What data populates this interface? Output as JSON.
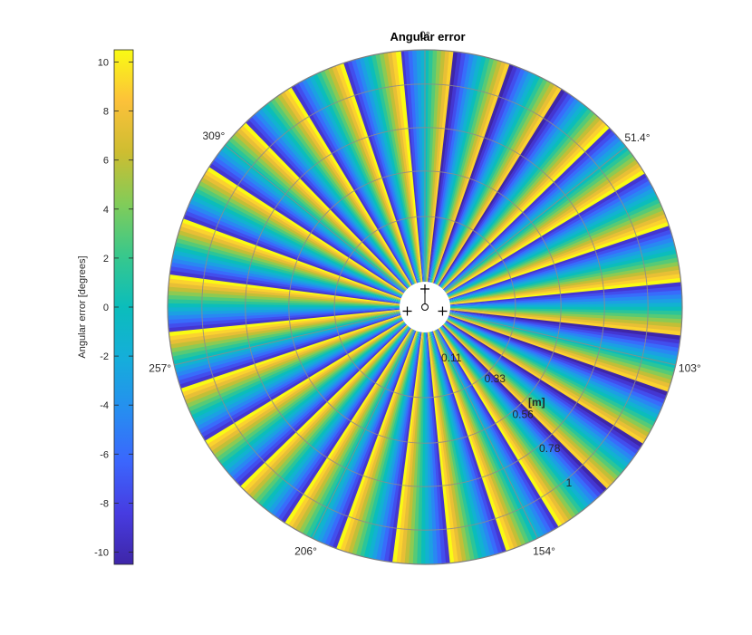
{
  "chart_data": {
    "type": "heatmap",
    "projection": "polar",
    "title": "Angular error",
    "colorbar": {
      "label": "Angular error [degrees]",
      "range": [
        -10.5,
        10.5
      ],
      "ticks": [
        -10,
        -8,
        -6,
        -4,
        -2,
        0,
        2,
        4,
        6,
        8,
        10
      ],
      "colormap": "parula",
      "placement": "left"
    },
    "radial_axis": {
      "unit_label": "[m]",
      "range": [
        0,
        1.22
      ],
      "ticks": [
        0.11,
        0.33,
        0.56,
        0.78,
        1
      ],
      "tick_labels": [
        "0.11",
        "0.33",
        "0.56",
        "0.78",
        "1"
      ]
    },
    "angular_axis": {
      "direction": "clockwise",
      "zero_at": "top",
      "tick_labels": [
        "0°",
        "51.4°",
        "103°",
        "154°",
        "206°",
        "257°",
        "309°"
      ],
      "tick_angles_deg": [
        0,
        51.4,
        103,
        154,
        206,
        257,
        309
      ]
    },
    "pattern": {
      "sectors_per_cycle_deg": 12.857,
      "amplitude_deg": 10.5,
      "description_values": "angular error cycles linearly from -10.5 to +10.5 degrees within each 12.857 degree sector"
    },
    "markers": [
      {
        "symbol": "+",
        "angle_deg": 0,
        "radius": 0.1
      },
      {
        "symbol": "+",
        "angle_deg": 257,
        "radius": 0.1
      },
      {
        "symbol": "+",
        "angle_deg": 103,
        "radius": 0.1
      },
      {
        "symbol": "o",
        "angle_deg": 0,
        "radius": 0.0
      }
    ],
    "grid": true
  }
}
